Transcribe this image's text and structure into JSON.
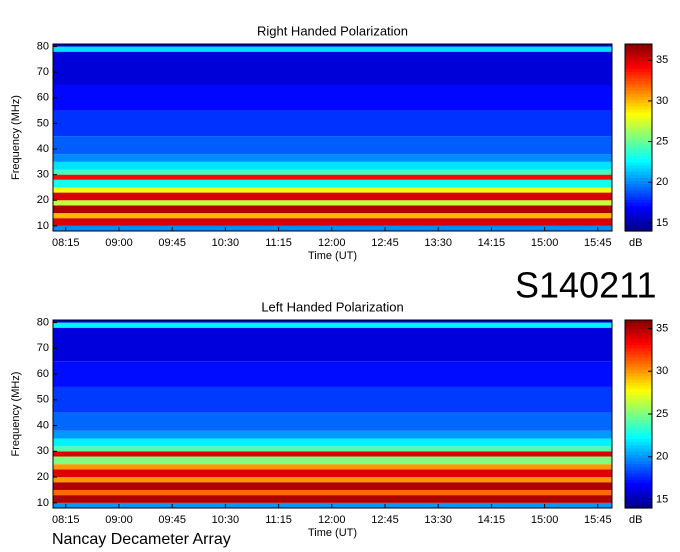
{
  "chart_data": [
    {
      "type": "heatmap",
      "title": "Right Handed Polarization",
      "xlabel": "Time (UT)",
      "ylabel": "Frequency (MHz)",
      "xlim": [
        8.07,
        15.95
      ],
      "xticks": [
        {
          "value": 8.25,
          "label": "08:15"
        },
        {
          "value": 9.0,
          "label": "09:00"
        },
        {
          "value": 9.75,
          "label": "09:45"
        },
        {
          "value": 10.5,
          "label": "10:30"
        },
        {
          "value": 11.25,
          "label": "11:15"
        },
        {
          "value": 12.0,
          "label": "12:00"
        },
        {
          "value": 12.75,
          "label": "12:45"
        },
        {
          "value": 13.5,
          "label": "13:30"
        },
        {
          "value": 14.25,
          "label": "14:15"
        },
        {
          "value": 15.0,
          "label": "15:00"
        },
        {
          "value": 15.75,
          "label": "15:45"
        }
      ],
      "ylim": [
        8,
        81
      ],
      "yticks": [
        10,
        20,
        30,
        40,
        50,
        60,
        70,
        80
      ],
      "y_bins": [
        8,
        10,
        13,
        15,
        18,
        20,
        23,
        25,
        28,
        30,
        32,
        35,
        38,
        45,
        55,
        65,
        78,
        80,
        81
      ],
      "values": [
        20,
        35,
        30,
        36,
        27,
        35,
        28,
        23,
        34,
        24,
        22,
        20,
        19,
        18,
        17,
        16,
        22,
        16
      ],
      "colormap": "jet",
      "clim": [
        14,
        37
      ],
      "cticks": [
        15,
        20,
        25,
        30,
        35
      ],
      "colorbar_label": "dB"
    },
    {
      "type": "heatmap",
      "title": "Left Handed Polarization",
      "xlabel": "Time (UT)",
      "ylabel": "Frequency (MHz)",
      "xlim": [
        8.07,
        15.95
      ],
      "xticks": [
        {
          "value": 8.25,
          "label": "08:15"
        },
        {
          "value": 9.0,
          "label": "09:00"
        },
        {
          "value": 9.75,
          "label": "09:45"
        },
        {
          "value": 10.5,
          "label": "10:30"
        },
        {
          "value": 11.25,
          "label": "11:15"
        },
        {
          "value": 12.0,
          "label": "12:00"
        },
        {
          "value": 12.75,
          "label": "12:45"
        },
        {
          "value": 13.5,
          "label": "13:30"
        },
        {
          "value": 14.25,
          "label": "14:15"
        },
        {
          "value": 15.0,
          "label": "15:00"
        },
        {
          "value": 15.75,
          "label": "15:45"
        }
      ],
      "ylim": [
        8,
        81
      ],
      "yticks": [
        10,
        20,
        30,
        40,
        50,
        60,
        70,
        80
      ],
      "y_bins": [
        8,
        10,
        13,
        15,
        18,
        20,
        23,
        25,
        28,
        30,
        32,
        35,
        38,
        45,
        55,
        65,
        78,
        80,
        81
      ],
      "values": [
        20,
        35,
        31,
        35,
        30,
        34,
        30,
        25,
        34,
        24,
        22,
        20,
        19,
        18,
        17,
        16,
        22,
        16
      ],
      "colormap": "jet",
      "clim": [
        14,
        36
      ],
      "cticks": [
        15,
        20,
        25,
        30,
        35
      ],
      "colorbar_label": "dB"
    }
  ],
  "annotation": "S140211",
  "footer": "Nancay Decameter Array"
}
